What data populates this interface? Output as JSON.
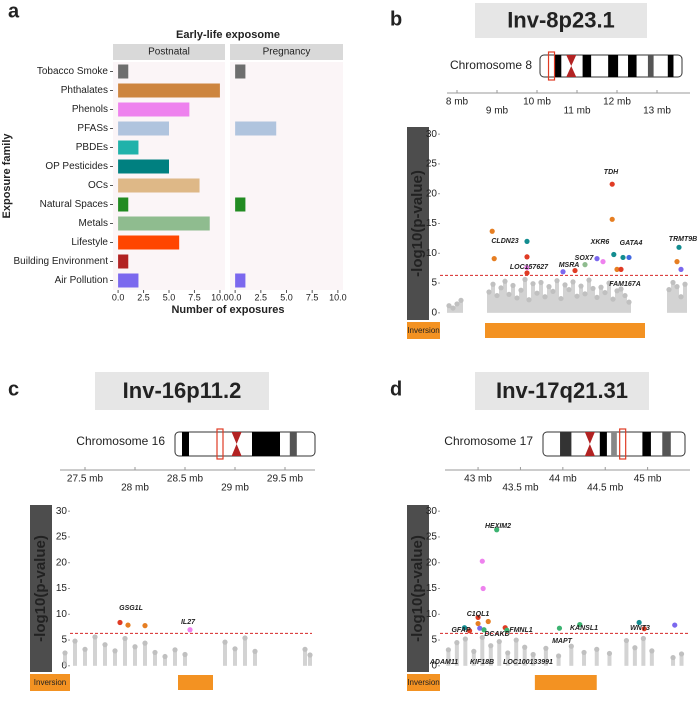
{
  "chart_data": [
    {
      "type": "bar",
      "panel": "a",
      "title": "Early-life exposome",
      "categories": [
        "Tobacco Smoke",
        "Phthalates",
        "Phenols",
        "PFASs",
        "PBDEs",
        "OP Pesticides",
        "OCs",
        "Natural Spaces",
        "Metals",
        "Lifestyle",
        "Building Environment",
        "Air Pollution"
      ],
      "colors": [
        "#6e6e6e",
        "#cd853f",
        "#ee82ee",
        "#b0c4de",
        "#20b2aa",
        "#008080",
        "#deb887",
        "#228b22",
        "#8fbc8f",
        "#ff4500",
        "#b22222",
        "#7b68ee"
      ],
      "series": [
        {
          "name": "Postnatal",
          "values": [
            1,
            10,
            7,
            5,
            2,
            5,
            8,
            1,
            9,
            6,
            1,
            2
          ]
        },
        {
          "name": "Pregnancy",
          "values": [
            1,
            0,
            0,
            4,
            0,
            0,
            0,
            1,
            0,
            0,
            0,
            1
          ]
        }
      ],
      "xlim": [
        -0.5,
        10.5
      ],
      "xticks": [
        {
          "value": 0,
          "label": "0.0"
        },
        {
          "value": 2.5,
          "label": "2.5"
        },
        {
          "value": 5,
          "label": "5.0"
        },
        {
          "value": 7.5,
          "label": "7.5"
        },
        {
          "value": 10,
          "label": "10.0"
        }
      ],
      "xlabel": "Number of exposures",
      "ylabel": "Exposure family"
    },
    {
      "type": "manhattan",
      "panel": "b",
      "title": "Inv-8p23.1",
      "chromosome": "Chromosome 8",
      "xlim": [
        7.75,
        13.825
      ],
      "xticks": [
        {
          "value": 8,
          "label": "8 mb"
        },
        {
          "value": 9,
          "label": "9 mb"
        },
        {
          "value": 10,
          "label": "10 mb"
        },
        {
          "value": 11,
          "label": "11 mb"
        },
        {
          "value": 12,
          "label": "12 mb"
        },
        {
          "value": 13,
          "label": "13 mb"
        }
      ],
      "ylim": [
        -1.2,
        31.2
      ],
      "yticks": [
        0,
        5,
        10,
        15,
        20,
        25,
        30
      ],
      "ylabel": "-log10(p-value)",
      "threshold": 6.3,
      "inversion_label": "Inversion",
      "inversion": [
        8.7,
        12.7
      ],
      "background": {
        "color": "#c0c0c0",
        "x": [
          7.8,
          7.9,
          8.0,
          8.1,
          8.8,
          8.9,
          9.0,
          9.1,
          9.2,
          9.3,
          9.4,
          9.5,
          9.6,
          9.7,
          9.8,
          9.9,
          10.0,
          10.1,
          10.2,
          10.3,
          10.4,
          10.5,
          10.6,
          10.7,
          10.8,
          10.9,
          11.0,
          11.1,
          11.2,
          11.3,
          11.4,
          11.5,
          11.6,
          11.7,
          11.8,
          11.9,
          12.0,
          12.1,
          12.2,
          12.3,
          13.3,
          13.4,
          13.5,
          13.6,
          13.7
        ],
        "values": [
          1.2,
          0.8,
          1.5,
          2.1,
          3.5,
          4.8,
          2.9,
          4.2,
          5.3,
          3.1,
          4.6,
          2.5,
          3.8,
          5.6,
          2.2,
          4.9,
          3.3,
          5.1,
          2.7,
          4.4,
          3.6,
          5.4,
          2.4,
          4.7,
          3.9,
          5.2,
          2.8,
          4.5,
          3.2,
          5.5,
          4.1,
          2.6,
          4.3,
          3.4,
          5.0,
          2.3,
          3.7,
          4.0,
          2.9,
          1.8,
          3.9,
          5.1,
          4.4,
          2.7,
          4.8
        ]
      },
      "highlights": {
        "x": [
          8.88,
          8.93,
          9.75,
          9.75,
          9.75,
          9.75,
          10.65,
          10.95,
          11.2,
          11.5,
          11.65,
          11.88,
          11.88,
          11.92,
          12.0,
          12.1,
          12.15,
          12.3,
          13.55,
          13.5,
          13.6
        ],
        "values": [
          13.7,
          9.1,
          12.0,
          9.4,
          7.6,
          6.7,
          6.9,
          7.1,
          8.1,
          9.1,
          8.6,
          21.6,
          15.7,
          9.8,
          7.3,
          7.3,
          9.3,
          9.3,
          11.0,
          8.6,
          7.3
        ],
        "colors": [
          "#e67e22",
          "#e67e22",
          "#138d90",
          "#e03b24",
          "#ee82ee",
          "#e03b24",
          "#7b68ee",
          "#e03b24",
          "#8fbc8f",
          "#7b68ee",
          "#ee82ee",
          "#e03b24",
          "#e67e22",
          "#138d90",
          "#e67e22",
          "#e03b24",
          "#138d90",
          "#4169e1",
          "#138d90",
          "#e67e22",
          "#7b68ee"
        ]
      },
      "genes": [
        "CLDN23",
        "LOC157627",
        "MSRA",
        "SOX7",
        "XKR6",
        "TDH",
        "GATA4",
        "FAM167A",
        "TRMT9B"
      ]
    },
    {
      "type": "manhattan",
      "panel": "c",
      "title": "Inv-16p11.2",
      "chromosome": "Chromosome 16",
      "xlim": [
        27.25,
        29.8
      ],
      "xticks": [
        {
          "value": 27.5,
          "label": "27.5 mb"
        },
        {
          "value": 28,
          "label": "28 mb"
        },
        {
          "value": 28.5,
          "label": "28.5 mb"
        },
        {
          "value": 29,
          "label": "29 mb"
        },
        {
          "value": 29.5,
          "label": "29.5 mb"
        }
      ],
      "ylim": [
        -1.2,
        31.2
      ],
      "yticks": [
        0,
        5,
        10,
        15,
        20,
        25,
        30
      ],
      "ylabel": "-log10(p-value)",
      "threshold": 6.3,
      "inversion_label": "Inversion",
      "inversion": [
        28.43,
        28.78
      ],
      "background": {
        "color": "#c0c0c0",
        "x": [
          27.3,
          27.4,
          27.5,
          27.6,
          27.7,
          27.8,
          27.9,
          28.0,
          28.1,
          28.2,
          28.3,
          28.4,
          28.5,
          28.9,
          29.0,
          29.1,
          29.2,
          29.7,
          29.75
        ],
        "values": [
          2.5,
          4.8,
          3.2,
          5.6,
          4.1,
          2.9,
          5.3,
          3.7,
          4.4,
          2.6,
          1.8,
          3.1,
          2.2,
          4.6,
          3.3,
          5.4,
          2.8,
          3.2,
          2.1
        ]
      },
      "highlights": {
        "x": [
          27.85,
          27.93,
          28.1,
          28.55
        ],
        "values": [
          8.4,
          7.9,
          7.8,
          7.0
        ],
        "colors": [
          "#e03b24",
          "#e67e22",
          "#e67e22",
          "#ee82ee"
        ]
      },
      "genes": [
        "GSG1L",
        "IL27"
      ]
    },
    {
      "type": "manhattan",
      "panel": "d",
      "title": "Inv-17q21.31",
      "chromosome": "Chromosome 17",
      "xlim": [
        42.61,
        45.5
      ],
      "xticks": [
        {
          "value": 43,
          "label": "43 mb"
        },
        {
          "value": 43.5,
          "label": "43.5 mb"
        },
        {
          "value": 44,
          "label": "44 mb"
        },
        {
          "value": 44.5,
          "label": "44.5 mb"
        },
        {
          "value": 45,
          "label": "45 mb"
        }
      ],
      "ylim": [
        -1.2,
        31.2
      ],
      "yticks": [
        0,
        5,
        10,
        15,
        20,
        25,
        30
      ],
      "ylabel": "-log10(p-value)",
      "threshold": 6.3,
      "inversion_label": "Inversion",
      "inversion": [
        43.67,
        44.4
      ],
      "background": {
        "color": "#c0c0c0",
        "x": [
          42.65,
          42.75,
          42.85,
          42.95,
          43.05,
          43.15,
          43.25,
          43.35,
          43.45,
          43.55,
          43.65,
          43.8,
          43.95,
          44.1,
          44.25,
          44.4,
          44.55,
          44.75,
          44.85,
          44.95,
          45.05,
          45.3,
          45.4
        ],
        "values": [
          3.1,
          4.5,
          5.2,
          2.8,
          5.5,
          3.9,
          4.7,
          2.5,
          5.0,
          3.6,
          2.2,
          3.4,
          1.9,
          3.8,
          2.6,
          3.2,
          2.4,
          4.9,
          3.5,
          5.3,
          2.9,
          1.6,
          2.3
        ]
      },
      "highlights": {
        "x": [
          43.22,
          43.05,
          43.06,
          43.0,
          43.0,
          43.02,
          42.84,
          42.9,
          43.12,
          43.07,
          43.32,
          43.34,
          43.96,
          44.2,
          44.9,
          44.96,
          45.32
        ],
        "values": [
          26.4,
          20.3,
          15.0,
          9.4,
          8.2,
          7.3,
          7.4,
          6.8,
          8.6,
          7.0,
          7.4,
          6.9,
          7.3,
          8.0,
          8.4,
          7.2,
          7.9
        ],
        "colors": [
          "#3cb371",
          "#ee82ee",
          "#ee82ee",
          "#e03b24",
          "#e67e22",
          "#7b68ee",
          "#138d90",
          "#e03b24",
          "#e67e22",
          "#3cb371",
          "#e03b24",
          "#3cb371",
          "#3cb371",
          "#3cb371",
          "#138d90",
          "#e03b24",
          "#7b68ee"
        ]
      },
      "genes": [
        "HEXIM2",
        "GFAP",
        "C1QL1",
        "DCAKD",
        "FMNL1",
        "ADAM11",
        "KIF18B",
        "LOC100133991",
        "MAPT",
        "KANSL1",
        "WNT3"
      ]
    }
  ]
}
